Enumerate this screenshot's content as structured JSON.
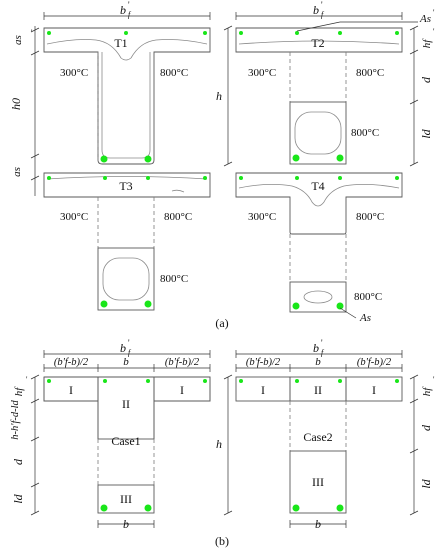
{
  "figure": {
    "panel_a_label": "(a)",
    "panel_b_label": "(b)",
    "colors": {
      "rebar": "#19e619",
      "outline": "#5a5a5a",
      "text": "#111111"
    }
  },
  "panel_a": {
    "t1": {
      "label": "T1",
      "width_label": "b",
      "width_sup": "'",
      "width_sub": "f",
      "temp_left": "300°C",
      "temp_right": "800°C",
      "dim_as_top": "as",
      "dim_as_top_sup": "'",
      "dim_h0": "h0",
      "dim_as_bottom": "as"
    },
    "t2": {
      "label": "T2",
      "width_label": "b",
      "width_sup": "'",
      "width_sub": "f",
      "rebar_top_label": "As",
      "rebar_top_sup": "'",
      "temp_left": "300°C",
      "temp_right": "800°C",
      "temp_core": "800°C",
      "dim_h": "h",
      "dim_hf": "hf",
      "dim_hf_sup": "'",
      "dim_d": "d",
      "dim_ld": "ld"
    },
    "t3": {
      "label": "T3",
      "temp_left": "300°C",
      "temp_right": "800°C",
      "temp_core": "800°C"
    },
    "t4": {
      "label": "T4",
      "temp_left": "300°C",
      "temp_right": "800°C",
      "temp_core": "800°C",
      "rebar_bottom_label": "As"
    }
  },
  "panel_b": {
    "case1": {
      "label": "Case1",
      "width_label": "b",
      "width_sup": "'",
      "width_sub": "f",
      "flange_left_width": "(b'f-b)/2",
      "web_width": "b",
      "flange_right_width": "(b'f-b)/2",
      "zone_i_left": "I",
      "zone_ii": "II",
      "zone_i_right": "I",
      "zone_iii": "III",
      "dim_hf": "hf",
      "dim_hf_sup": "'",
      "dim_middle": "h-h'f-d-ld",
      "dim_d": "d",
      "dim_ld": "ld",
      "bottom_b": "b"
    },
    "case2": {
      "label": "Case2",
      "width_label": "b",
      "width_sup": "'",
      "width_sub": "f",
      "flange_left_width": "(b'f-b)/2",
      "web_width": "b",
      "flange_right_width": "(b'f-b)/2",
      "zone_i_left": "I",
      "zone_ii": "II",
      "zone_i_right": "I",
      "zone_iii": "III",
      "dim_h": "h",
      "dim_hf": "hf",
      "dim_hf_sup": "'",
      "dim_d": "d",
      "dim_ld": "ld",
      "bottom_b": "b"
    }
  }
}
